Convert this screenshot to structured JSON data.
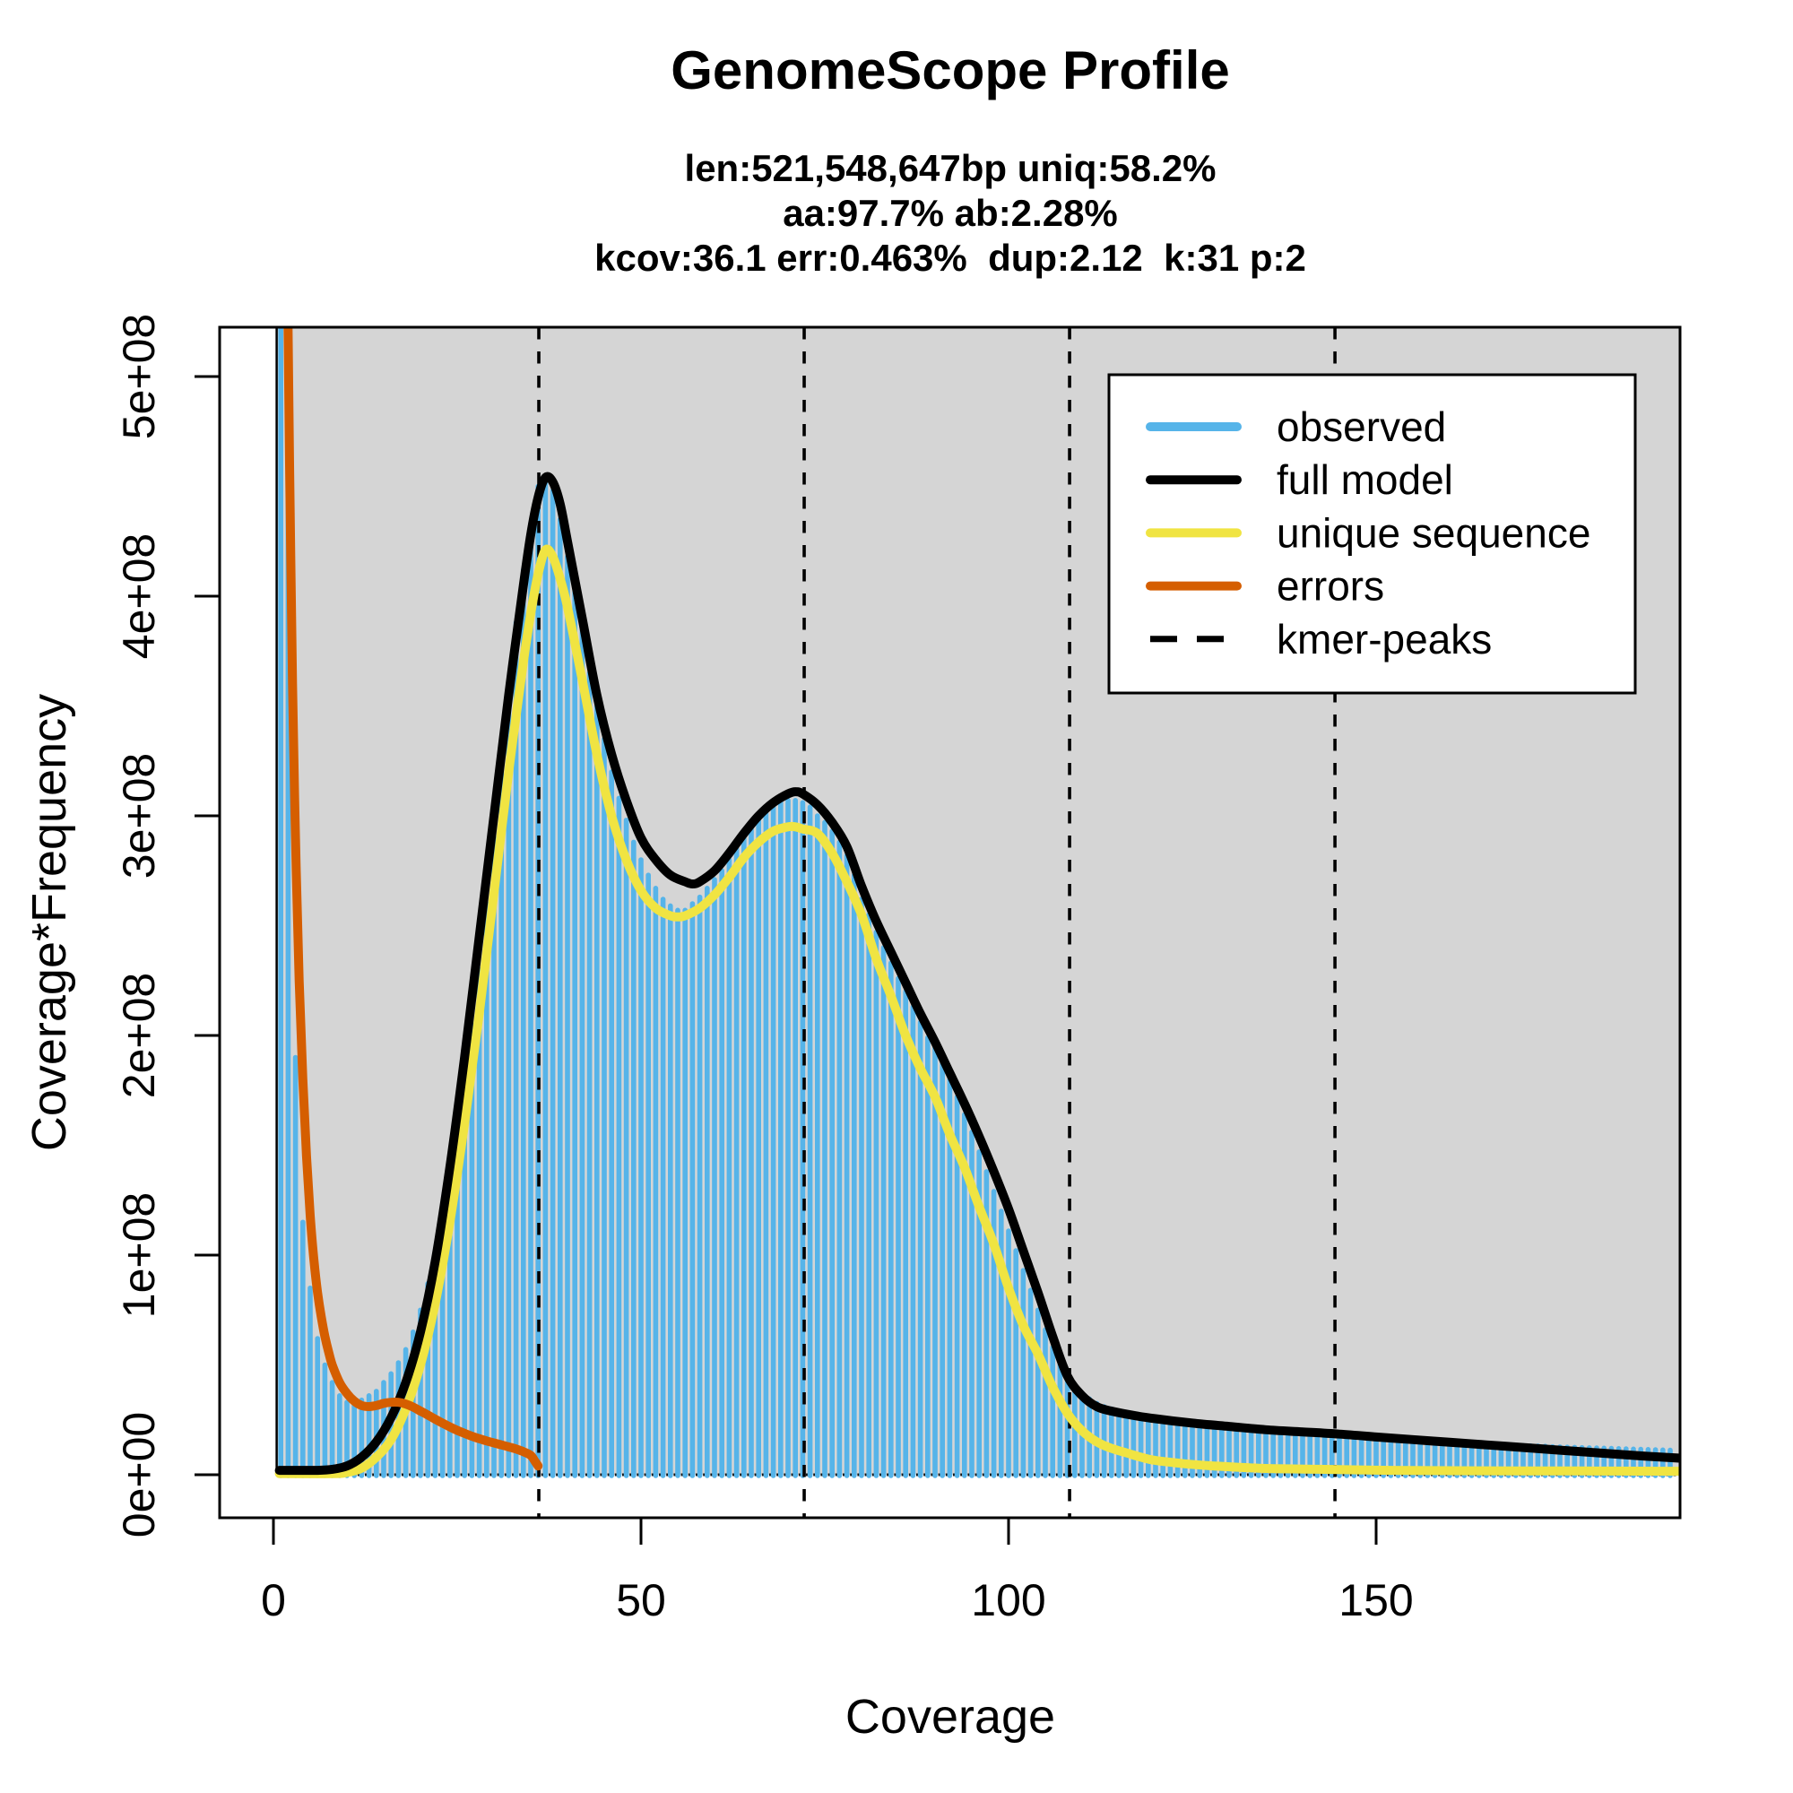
{
  "header": {
    "title": "GenomeScope Profile",
    "subtitle_lines": [
      "len:521,548,647bp uniq:58.2%",
      "aa:97.7% ab:2.28%",
      "kcov:36.1 err:0.463%  dup:2.12  k:31 p:2"
    ]
  },
  "chart_data": {
    "type": "bar",
    "title": "GenomeScope Profile",
    "xlabel": "Coverage",
    "ylabel": "Coverage*Frequency",
    "xlim": [
      -7.3,
      191.3
    ],
    "ylim_e8": [
      0,
      5.22
    ],
    "grid": false,
    "legend_position": "top-right",
    "x_ticks": [
      0,
      50,
      100,
      150
    ],
    "y_ticks": [
      {
        "label": "0e+00",
        "value_e8": 0
      },
      {
        "label": "1e+08",
        "value_e8": 1
      },
      {
        "label": "2e+08",
        "value_e8": 2
      },
      {
        "label": "3e+08",
        "value_e8": 3
      },
      {
        "label": "4e+08",
        "value_e8": 4
      },
      {
        "label": "5e+08",
        "value_e8": 5
      }
    ],
    "kmer_peaks": [
      36.1,
      72.2,
      108.3,
      144.4
    ],
    "observed": {
      "name": "observed",
      "x_start": 1,
      "clipped_note": "values in units of 1e8; first two bars exceed axis and are clipped",
      "values_e8": [
        6.0,
        6.0,
        1.9,
        1.15,
        0.85,
        0.62,
        0.5,
        0.42,
        0.36,
        0.33,
        0.33,
        0.34,
        0.36,
        0.38,
        0.42,
        0.46,
        0.51,
        0.57,
        0.65,
        0.75,
        0.87,
        1.0,
        1.15,
        1.35,
        1.55,
        1.8,
        2.05,
        2.3,
        2.6,
        2.9,
        3.2,
        3.5,
        3.88,
        4.12,
        4.33,
        4.5,
        4.53,
        4.48,
        4.35,
        4.18,
        4.02,
        3.85,
        3.65,
        3.5,
        3.35,
        3.2,
        3.08,
        2.98,
        2.88,
        2.8,
        2.73,
        2.67,
        2.62,
        2.59,
        2.57,
        2.57,
        2.6,
        2.63,
        2.67,
        2.71,
        2.75,
        2.8,
        2.85,
        2.9,
        2.95,
        2.99,
        3.02,
        3.04,
        3.06,
        3.07,
        3.07,
        3.06,
        3.04,
        3.0,
        2.97,
        2.93,
        2.88,
        2.82,
        2.73,
        2.62,
        2.55,
        2.47,
        2.4,
        2.33,
        2.26,
        2.2,
        2.13,
        2.06,
        1.99,
        1.95,
        1.88,
        1.8,
        1.72,
        1.64,
        1.56,
        1.47,
        1.38,
        1.29,
        1.2,
        1.11,
        1.02,
        0.93,
        0.84,
        0.75,
        0.66,
        0.58,
        0.51,
        0.45,
        0.4,
        0.36,
        0.345,
        0.325,
        0.31,
        0.3,
        0.29,
        0.28,
        0.27,
        0.265,
        0.26,
        0.25,
        0.245,
        0.24,
        0.235,
        0.23,
        0.227,
        0.224,
        0.22,
        0.217,
        0.214,
        0.21,
        0.208,
        0.205,
        0.202,
        0.2,
        0.197,
        0.195,
        0.192,
        0.19,
        0.188,
        0.185,
        0.183,
        0.181,
        0.179,
        0.177,
        0.175,
        0.173,
        0.171,
        0.169,
        0.167,
        0.165,
        0.163,
        0.161,
        0.159,
        0.157,
        0.155,
        0.154,
        0.152,
        0.15,
        0.149,
        0.147,
        0.146,
        0.144,
        0.143,
        0.141,
        0.14,
        0.139,
        0.137,
        0.136,
        0.135,
        0.133,
        0.132,
        0.131,
        0.13,
        0.128,
        0.127,
        0.126,
        0.125,
        0.124,
        0.123,
        0.122,
        0.121,
        0.12,
        0.119,
        0.118,
        0.117,
        0.116,
        0.115,
        0.114,
        0.113,
        0.112
      ]
    },
    "series": [
      {
        "name": "full model",
        "color": "#000000",
        "points": [
          [
            0.8,
            0.02
          ],
          [
            4,
            0.02
          ],
          [
            6,
            0.02
          ],
          [
            8,
            0.025
          ],
          [
            10,
            0.04
          ],
          [
            12,
            0.08
          ],
          [
            14,
            0.15
          ],
          [
            16,
            0.26
          ],
          [
            18,
            0.42
          ],
          [
            20,
            0.65
          ],
          [
            22,
            0.97
          ],
          [
            24,
            1.4
          ],
          [
            26,
            1.9
          ],
          [
            28,
            2.45
          ],
          [
            30,
            3.0
          ],
          [
            32,
            3.55
          ],
          [
            34,
            4.05
          ],
          [
            35,
            4.28
          ],
          [
            36,
            4.45
          ],
          [
            37,
            4.54
          ],
          [
            38,
            4.52
          ],
          [
            39,
            4.42
          ],
          [
            40,
            4.25
          ],
          [
            42,
            3.9
          ],
          [
            44,
            3.55
          ],
          [
            46,
            3.28
          ],
          [
            48,
            3.07
          ],
          [
            50,
            2.9
          ],
          [
            52,
            2.8
          ],
          [
            54,
            2.73
          ],
          [
            56,
            2.7
          ],
          [
            57,
            2.69
          ],
          [
            58,
            2.7
          ],
          [
            60,
            2.75
          ],
          [
            62,
            2.83
          ],
          [
            64,
            2.92
          ],
          [
            66,
            3.0
          ],
          [
            68,
            3.06
          ],
          [
            70,
            3.1
          ],
          [
            71,
            3.11
          ],
          [
            72,
            3.1
          ],
          [
            74,
            3.05
          ],
          [
            76,
            2.97
          ],
          [
            78,
            2.86
          ],
          [
            80,
            2.68
          ],
          [
            82,
            2.52
          ],
          [
            84,
            2.38
          ],
          [
            86,
            2.24
          ],
          [
            88,
            2.1
          ],
          [
            90,
            1.97
          ],
          [
            92,
            1.83
          ],
          [
            94,
            1.69
          ],
          [
            96,
            1.54
          ],
          [
            98,
            1.38
          ],
          [
            100,
            1.21
          ],
          [
            102,
            1.02
          ],
          [
            104,
            0.83
          ],
          [
            106,
            0.63
          ],
          [
            108,
            0.45
          ],
          [
            110,
            0.36
          ],
          [
            112,
            0.31
          ],
          [
            114,
            0.29
          ],
          [
            117,
            0.27
          ],
          [
            120,
            0.255
          ],
          [
            125,
            0.235
          ],
          [
            130,
            0.22
          ],
          [
            135,
            0.205
          ],
          [
            140,
            0.195
          ],
          [
            145,
            0.185
          ],
          [
            150,
            0.172
          ],
          [
            155,
            0.16
          ],
          [
            160,
            0.148
          ],
          [
            165,
            0.136
          ],
          [
            170,
            0.124
          ],
          [
            175,
            0.112
          ],
          [
            180,
            0.1
          ],
          [
            185,
            0.088
          ],
          [
            190,
            0.078
          ],
          [
            191.5,
            0.075
          ]
        ]
      },
      {
        "name": "unique sequence",
        "color": "#F0E442",
        "points": [
          [
            0.8,
            0.005
          ],
          [
            8,
            0.005
          ],
          [
            10,
            0.01
          ],
          [
            12,
            0.03
          ],
          [
            14,
            0.08
          ],
          [
            16,
            0.16
          ],
          [
            18,
            0.3
          ],
          [
            20,
            0.5
          ],
          [
            22,
            0.78
          ],
          [
            24,
            1.15
          ],
          [
            26,
            1.6
          ],
          [
            28,
            2.1
          ],
          [
            30,
            2.65
          ],
          [
            32,
            3.2
          ],
          [
            34,
            3.7
          ],
          [
            35,
            3.92
          ],
          [
            36,
            4.1
          ],
          [
            37,
            4.21
          ],
          [
            38,
            4.18
          ],
          [
            39,
            4.08
          ],
          [
            40,
            3.95
          ],
          [
            42,
            3.62
          ],
          [
            44,
            3.28
          ],
          [
            46,
            3.0
          ],
          [
            48,
            2.8
          ],
          [
            50,
            2.66
          ],
          [
            52,
            2.58
          ],
          [
            54,
            2.545
          ],
          [
            55,
            2.54
          ],
          [
            56,
            2.545
          ],
          [
            58,
            2.58
          ],
          [
            60,
            2.64
          ],
          [
            62,
            2.72
          ],
          [
            64,
            2.81
          ],
          [
            66,
            2.88
          ],
          [
            68,
            2.93
          ],
          [
            70,
            2.95
          ],
          [
            71,
            2.95
          ],
          [
            72,
            2.94
          ],
          [
            74,
            2.92
          ],
          [
            76,
            2.83
          ],
          [
            78,
            2.7
          ],
          [
            80,
            2.55
          ],
          [
            82,
            2.35
          ],
          [
            84,
            2.18
          ],
          [
            86,
            2.0
          ],
          [
            88,
            1.85
          ],
          [
            90,
            1.72
          ],
          [
            92,
            1.55
          ],
          [
            94,
            1.4
          ],
          [
            96,
            1.22
          ],
          [
            98,
            1.05
          ],
          [
            100,
            0.85
          ],
          [
            102,
            0.68
          ],
          [
            104,
            0.55
          ],
          [
            106,
            0.4
          ],
          [
            108,
            0.28
          ],
          [
            110,
            0.2
          ],
          [
            112,
            0.15
          ],
          [
            114,
            0.12
          ],
          [
            116,
            0.1
          ],
          [
            118,
            0.08
          ],
          [
            120,
            0.065
          ],
          [
            124,
            0.05
          ],
          [
            128,
            0.04
          ],
          [
            134,
            0.03
          ],
          [
            142,
            0.025
          ],
          [
            152,
            0.02
          ],
          [
            165,
            0.018
          ],
          [
            178,
            0.017
          ],
          [
            190,
            0.016
          ],
          [
            191.5,
            0.016
          ]
        ]
      },
      {
        "name": "errors",
        "color": "#D55E00",
        "points": [
          [
            1.9,
            5.5
          ],
          [
            2.2,
            4.6
          ],
          [
            2.6,
            3.6
          ],
          [
            3,
            2.9
          ],
          [
            3.5,
            2.25
          ],
          [
            4,
            1.8
          ],
          [
            4.5,
            1.45
          ],
          [
            5,
            1.18
          ],
          [
            5.5,
            0.98
          ],
          [
            6,
            0.83
          ],
          [
            6.5,
            0.72
          ],
          [
            7,
            0.63
          ],
          [
            7.5,
            0.56
          ],
          [
            8,
            0.5
          ],
          [
            9,
            0.42
          ],
          [
            10,
            0.37
          ],
          [
            11,
            0.335
          ],
          [
            12,
            0.315
          ],
          [
            13,
            0.31
          ],
          [
            14,
            0.315
          ],
          [
            15,
            0.325
          ],
          [
            16,
            0.33
          ],
          [
            17,
            0.33
          ],
          [
            18,
            0.322
          ],
          [
            19,
            0.308
          ],
          [
            20,
            0.29
          ],
          [
            21,
            0.272
          ],
          [
            22,
            0.253
          ],
          [
            23,
            0.235
          ],
          [
            24,
            0.218
          ],
          [
            25,
            0.202
          ],
          [
            26,
            0.188
          ],
          [
            27,
            0.175
          ],
          [
            28,
            0.164
          ],
          [
            29,
            0.154
          ],
          [
            30,
            0.145
          ],
          [
            31,
            0.136
          ],
          [
            32,
            0.127
          ],
          [
            33,
            0.117
          ],
          [
            34,
            0.105
          ],
          [
            35,
            0.088
          ],
          [
            35.6,
            0.06
          ],
          [
            36,
            0.04
          ]
        ]
      }
    ],
    "legend": [
      {
        "label": "observed",
        "color": "#56B4E9",
        "style": "solid"
      },
      {
        "label": "full model",
        "color": "#000000",
        "style": "solid"
      },
      {
        "label": "unique sequence",
        "color": "#F0E442",
        "style": "solid"
      },
      {
        "label": "errors",
        "color": "#D55E00",
        "style": "solid"
      },
      {
        "label": "kmer-peaks",
        "color": "#000000",
        "style": "dashed"
      }
    ],
    "colors": {
      "histogram": "#56B4E9",
      "panel_background": "#D5D5D5",
      "panel_border": "#000000",
      "text": "#000000",
      "legend_background": "#FFFFFF"
    }
  }
}
